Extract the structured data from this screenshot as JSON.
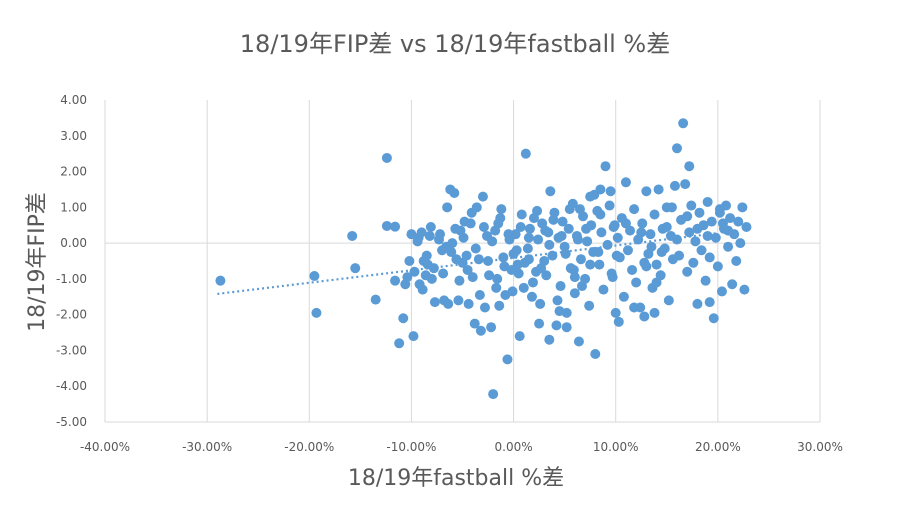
{
  "chart_data": {
    "type": "scatter",
    "title": "18/19年FIP差 vs 18/19年fastball %差",
    "xlabel": "18/19年fastball %差",
    "ylabel": "18/19年FIP差",
    "xlim": [
      -0.4,
      0.3
    ],
    "ylim": [
      -5.0,
      4.0
    ],
    "x_ticks": [
      -0.4,
      -0.3,
      -0.2,
      -0.1,
      0.0,
      0.1,
      0.2,
      0.3
    ],
    "x_tick_labels": [
      "-40.00%",
      "-30.00%",
      "-20.00%",
      "-10.00%",
      "0.00%",
      "10.00%",
      "20.00%",
      "30.00%"
    ],
    "y_ticks": [
      4.0,
      3.0,
      2.0,
      1.0,
      0.0,
      -1.0,
      -2.0,
      -3.0,
      -4.0,
      -5.0
    ],
    "y_tick_labels": [
      "4.00",
      "3.00",
      "2.00",
      "1.00",
      "0.00",
      "-1.00",
      "-2.00",
      "-3.00",
      "-4.00",
      "-5.00"
    ],
    "grid": "vertical",
    "legend": "none",
    "trendline": {
      "type": "linear",
      "x": [
        -0.29,
        0.2
      ],
      "y": [
        -1.42,
        0.28
      ]
    },
    "colors": {
      "points": "#5B9BD5",
      "trendline": "#5B9BD5",
      "grid": "#D9D9D9",
      "text": "#595959"
    },
    "points": [
      [
        -0.287,
        -1.05
      ],
      [
        -0.195,
        -0.92
      ],
      [
        -0.193,
        -1.95
      ],
      [
        -0.158,
        0.2
      ],
      [
        -0.155,
        -0.7
      ],
      [
        -0.135,
        -1.58
      ],
      [
        -0.124,
        2.38
      ],
      [
        -0.124,
        0.48
      ],
      [
        -0.116,
        0.46
      ],
      [
        -0.116,
        -1.05
      ],
      [
        -0.112,
        -2.8
      ],
      [
        -0.108,
        -2.1
      ],
      [
        -0.106,
        -1.15
      ],
      [
        -0.104,
        -0.95
      ],
      [
        -0.102,
        -0.5
      ],
      [
        -0.1,
        0.25
      ],
      [
        -0.098,
        -2.6
      ],
      [
        -0.094,
        0.05
      ],
      [
        -0.092,
        -1.15
      ],
      [
        -0.09,
        0.3
      ],
      [
        -0.088,
        -0.5
      ],
      [
        -0.086,
        -0.9
      ],
      [
        -0.084,
        -0.6
      ],
      [
        -0.082,
        0.2
      ],
      [
        -0.08,
        -1.0
      ],
      [
        -0.078,
        -0.7
      ],
      [
        -0.072,
        0.25
      ],
      [
        -0.07,
        -0.2
      ],
      [
        -0.068,
        -1.6
      ],
      [
        -0.066,
        -0.1
      ],
      [
        -0.064,
        -1.7
      ],
      [
        -0.062,
        1.5
      ],
      [
        -0.06,
        0.0
      ],
      [
        -0.058,
        1.4
      ],
      [
        -0.056,
        -0.45
      ],
      [
        -0.054,
        -1.6
      ],
      [
        -0.052,
        0.35
      ],
      [
        -0.05,
        -0.55
      ],
      [
        -0.048,
        0.6
      ],
      [
        -0.046,
        -0.35
      ],
      [
        -0.044,
        -1.7
      ],
      [
        -0.042,
        0.55
      ],
      [
        -0.04,
        -0.95
      ],
      [
        -0.038,
        -2.25
      ],
      [
        -0.036,
        1.0
      ],
      [
        -0.034,
        -0.45
      ],
      [
        -0.032,
        -2.45
      ],
      [
        -0.03,
        1.3
      ],
      [
        -0.028,
        -1.8
      ],
      [
        -0.026,
        0.2
      ],
      [
        -0.024,
        -0.9
      ],
      [
        -0.022,
        -2.35
      ],
      [
        -0.02,
        -4.22
      ],
      [
        -0.018,
        0.35
      ],
      [
        -0.016,
        -1.0
      ],
      [
        -0.014,
        -1.75
      ],
      [
        -0.012,
        0.95
      ],
      [
        -0.01,
        -0.4
      ],
      [
        -0.008,
        -1.45
      ],
      [
        -0.006,
        -3.25
      ],
      [
        -0.004,
        0.1
      ],
      [
        -0.002,
        -0.75
      ],
      [
        0.0,
        -0.3
      ],
      [
        0.002,
        0.25
      ],
      [
        0.004,
        -0.6
      ],
      [
        0.006,
        -2.6
      ],
      [
        0.008,
        0.8
      ],
      [
        0.01,
        -1.25
      ],
      [
        0.012,
        2.5
      ],
      [
        0.014,
        -0.15
      ],
      [
        0.016,
        0.4
      ],
      [
        0.018,
        -1.5
      ],
      [
        0.02,
        0.7
      ],
      [
        0.022,
        -0.8
      ],
      [
        0.024,
        0.1
      ],
      [
        0.026,
        -1.7
      ],
      [
        0.028,
        0.55
      ],
      [
        0.03,
        -0.5
      ],
      [
        0.032,
        -0.9
      ],
      [
        0.034,
        0.3
      ],
      [
        0.036,
        1.45
      ],
      [
        0.038,
        -0.35
      ],
      [
        0.04,
        0.85
      ],
      [
        0.042,
        -2.3
      ],
      [
        0.044,
        0.15
      ],
      [
        0.046,
        -1.2
      ],
      [
        0.048,
        0.6
      ],
      [
        0.05,
        -0.1
      ],
      [
        0.052,
        -2.35
      ],
      [
        0.054,
        0.4
      ],
      [
        0.056,
        -0.7
      ],
      [
        0.058,
        1.1
      ],
      [
        0.06,
        -1.4
      ],
      [
        0.062,
        0.2
      ],
      [
        0.064,
        -2.75
      ],
      [
        0.066,
        -0.45
      ],
      [
        0.068,
        0.75
      ],
      [
        0.07,
        -1.0
      ],
      [
        0.072,
        0.05
      ],
      [
        0.074,
        -1.75
      ],
      [
        0.076,
        0.5
      ],
      [
        0.078,
        -0.25
      ],
      [
        0.08,
        -3.1
      ],
      [
        0.082,
        0.9
      ],
      [
        0.084,
        -0.6
      ],
      [
        0.086,
        0.3
      ],
      [
        0.088,
        -1.3
      ],
      [
        0.09,
        2.15
      ],
      [
        0.092,
        -0.05
      ],
      [
        0.094,
        1.05
      ],
      [
        0.096,
        -0.85
      ],
      [
        0.098,
        0.45
      ],
      [
        0.1,
        -1.95
      ],
      [
        0.102,
        0.15
      ],
      [
        0.104,
        -0.4
      ],
      [
        0.106,
        0.7
      ],
      [
        0.108,
        -1.5
      ],
      [
        0.11,
        1.7
      ],
      [
        0.112,
        -0.2
      ],
      [
        0.114,
        0.35
      ],
      [
        0.116,
        -0.75
      ],
      [
        0.118,
        0.95
      ],
      [
        0.12,
        -1.1
      ],
      [
        0.122,
        0.1
      ],
      [
        0.124,
        -1.8
      ],
      [
        0.126,
        0.55
      ],
      [
        0.128,
        -0.55
      ],
      [
        0.13,
        1.45
      ],
      [
        0.132,
        -0.3
      ],
      [
        0.134,
        0.25
      ],
      [
        0.136,
        -1.25
      ],
      [
        0.138,
        0.8
      ],
      [
        0.14,
        -0.6
      ],
      [
        0.142,
        1.5
      ],
      [
        0.144,
        -0.9
      ],
      [
        0.146,
        0.4
      ],
      [
        0.148,
        -0.15
      ],
      [
        0.15,
        1.0
      ],
      [
        0.152,
        -1.6
      ],
      [
        0.154,
        0.2
      ],
      [
        0.156,
        -0.45
      ],
      [
        0.158,
        1.6
      ],
      [
        0.16,
        2.65
      ],
      [
        0.162,
        -0.35
      ],
      [
        0.164,
        0.65
      ],
      [
        0.166,
        3.35
      ],
      [
        0.168,
        1.65
      ],
      [
        0.17,
        -0.8
      ],
      [
        0.172,
        0.3
      ],
      [
        0.174,
        1.05
      ],
      [
        0.176,
        -0.55
      ],
      [
        0.178,
        0.05
      ],
      [
        0.18,
        -1.7
      ],
      [
        0.182,
        0.85
      ],
      [
        0.184,
        -0.2
      ],
      [
        0.186,
        0.5
      ],
      [
        0.188,
        -1.05
      ],
      [
        0.19,
        1.15
      ],
      [
        0.192,
        -0.4
      ],
      [
        0.194,
        0.6
      ],
      [
        0.196,
        -2.1
      ],
      [
        0.198,
        0.15
      ],
      [
        0.2,
        -0.65
      ],
      [
        0.202,
        0.95
      ],
      [
        0.204,
        -1.35
      ],
      [
        0.206,
        0.4
      ],
      [
        0.208,
        1.05
      ],
      [
        0.21,
        -0.1
      ],
      [
        0.212,
        0.7
      ],
      [
        0.214,
        -1.15
      ],
      [
        0.216,
        0.25
      ],
      [
        0.218,
        -0.5
      ],
      [
        0.22,
        0.6
      ],
      [
        0.222,
        0.0
      ],
      [
        0.224,
        1.0
      ],
      [
        0.226,
        -1.3
      ],
      [
        0.228,
        0.45
      ],
      [
        0.172,
        2.15
      ],
      [
        0.155,
        1.0
      ],
      [
        0.192,
        -1.65
      ],
      [
        0.202,
        0.85
      ],
      [
        0.205,
        0.55
      ],
      [
        0.138,
        -1.95
      ],
      [
        0.14,
        -1.1
      ],
      [
        0.128,
        -2.05
      ],
      [
        0.118,
        -1.8
      ],
      [
        0.103,
        -2.2
      ],
      [
        0.101,
        -0.35
      ],
      [
        0.099,
        0.5
      ],
      [
        0.097,
        -0.95
      ],
      [
        0.085,
        0.8
      ],
      [
        0.083,
        -0.25
      ],
      [
        0.079,
        1.35
      ],
      [
        0.075,
        -0.6
      ],
      [
        0.071,
        0.4
      ],
      [
        0.067,
        -1.2
      ],
      [
        0.063,
        0.1
      ],
      [
        0.059,
        -0.75
      ],
      [
        0.055,
        0.95
      ],
      [
        0.051,
        -0.3
      ],
      [
        0.047,
        0.2
      ],
      [
        0.043,
        -1.6
      ],
      [
        0.039,
        0.65
      ],
      [
        0.035,
        -0.05
      ],
      [
        0.031,
        0.35
      ],
      [
        0.027,
        -0.7
      ],
      [
        0.023,
        0.9
      ],
      [
        0.019,
        -1.1
      ],
      [
        0.015,
        0.15
      ],
      [
        0.011,
        -0.55
      ],
      [
        0.007,
        0.45
      ],
      [
        0.003,
        -0.2
      ],
      [
        -0.001,
        -1.35
      ],
      [
        -0.005,
        0.25
      ],
      [
        -0.009,
        -0.65
      ],
      [
        -0.013,
        0.7
      ],
      [
        -0.017,
        -1.25
      ],
      [
        -0.021,
        0.05
      ],
      [
        -0.025,
        -0.5
      ],
      [
        -0.029,
        0.45
      ],
      [
        -0.033,
        -1.45
      ],
      [
        -0.037,
        -0.15
      ],
      [
        -0.041,
        0.85
      ],
      [
        -0.045,
        -0.75
      ],
      [
        -0.049,
        0.15
      ],
      [
        -0.053,
        -1.05
      ],
      [
        -0.057,
        0.4
      ],
      [
        -0.061,
        -0.25
      ],
      [
        -0.065,
        1.0
      ],
      [
        -0.069,
        -0.85
      ],
      [
        -0.073,
        0.1
      ],
      [
        -0.077,
        -1.65
      ],
      [
        -0.081,
        0.45
      ],
      [
        -0.085,
        -0.35
      ],
      [
        -0.089,
        -1.3
      ],
      [
        -0.093,
        0.15
      ],
      [
        -0.097,
        -0.8
      ],
      [
        0.045,
        -1.9
      ],
      [
        0.052,
        -1.95
      ],
      [
        0.06,
        -0.95
      ],
      [
        0.025,
        -2.25
      ],
      [
        0.035,
        -2.7
      ],
      [
        0.015,
        -0.45
      ],
      [
        0.005,
        -0.85
      ],
      [
        -0.015,
        0.55
      ],
      [
        0.13,
        -0.65
      ],
      [
        0.125,
        0.3
      ],
      [
        0.135,
        -0.1
      ],
      [
        0.145,
        -0.25
      ],
      [
        0.11,
        0.55
      ],
      [
        0.095,
        1.45
      ],
      [
        0.085,
        1.5
      ],
      [
        0.075,
        1.3
      ],
      [
        0.065,
        0.95
      ],
      [
        0.15,
        0.45
      ],
      [
        0.16,
        0.1
      ],
      [
        0.17,
        0.75
      ],
      [
        0.18,
        0.4
      ],
      [
        0.19,
        0.2
      ],
      [
        0.21,
        0.35
      ]
    ]
  }
}
